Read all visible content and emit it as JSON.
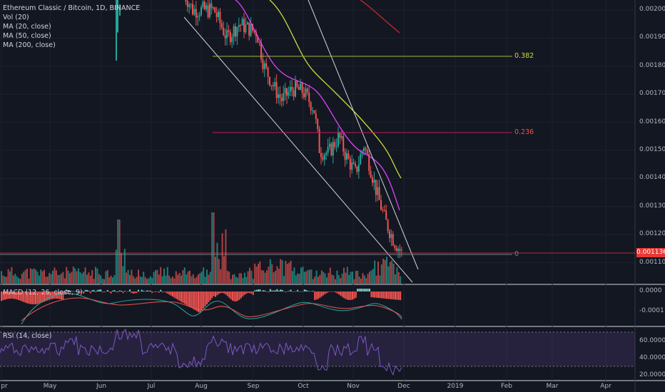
{
  "legend": {
    "title": "Ethereum Classic / Bitcoin, 1D, BINANCE",
    "vol": "Vol (20)",
    "ma20": "MA (20, close)",
    "ma50": "MA (50, close)",
    "ma200": "MA (200, close)"
  },
  "macd_label": "MACD (12, 26, close, 9)",
  "rsi_label": "RSI (14, close)",
  "last_price": "0.001136",
  "fib": {
    "level_382": "0.382",
    "level_236": "0.236",
    "level_0": "0"
  },
  "price_axis": [
    "0.002000",
    "0.001900",
    "0.001800",
    "0.001700",
    "0.001600",
    "0.001500",
    "0.001400",
    "0.001300",
    "0.001200",
    "0.001100"
  ],
  "macd_axis": [
    "0.0000",
    "-0.0001"
  ],
  "rsi_axis": [
    "60.0000",
    "40.0000",
    "20.0000"
  ],
  "months": [
    "pr",
    "May",
    "Jun",
    "Jul",
    "Aug",
    "Sep",
    "Oct",
    "Nov",
    "Dec",
    "2019",
    "Feb",
    "Mar",
    "Apr"
  ],
  "colors": {
    "up": "#26a69a",
    "down": "#ef5350",
    "ma20": "#e040fb",
    "ma50": "#cddc39",
    "ma200": "#c62828",
    "fib382": "#a5b33a",
    "fib236": "#c2185b",
    "rsi": "#7e57c2"
  },
  "chart_data": {
    "type": "candlestick",
    "symbol": "ETC/BTC",
    "timeframe": "1D",
    "exchange": "BINANCE",
    "y_range": [
      0.00103,
      0.00205
    ],
    "key_points": [
      {
        "date": "Jul 25",
        "close": 0.002
      },
      {
        "date": "Aug 10",
        "close": 0.00185
      },
      {
        "date": "Sep 1",
        "close": 0.00195
      },
      {
        "date": "Sep 15",
        "close": 0.00172
      },
      {
        "date": "Oct 1",
        "close": 0.0017
      },
      {
        "date": "Oct 10",
        "close": 0.0015
      },
      {
        "date": "Oct 20",
        "close": 0.00155
      },
      {
        "date": "Nov 1",
        "close": 0.00142
      },
      {
        "date": "Nov 8",
        "close": 0.00152
      },
      {
        "date": "Nov 15",
        "close": 0.0013
      },
      {
        "date": "Nov 26",
        "close": 0.001136
      }
    ],
    "fib_levels": [
      {
        "label": "0.382",
        "price": 0.00183
      },
      {
        "label": "0.236",
        "price": 0.00157
      },
      {
        "label": "0",
        "price": 0.00113
      }
    ],
    "rsi_levels": [
      70,
      30
    ]
  }
}
